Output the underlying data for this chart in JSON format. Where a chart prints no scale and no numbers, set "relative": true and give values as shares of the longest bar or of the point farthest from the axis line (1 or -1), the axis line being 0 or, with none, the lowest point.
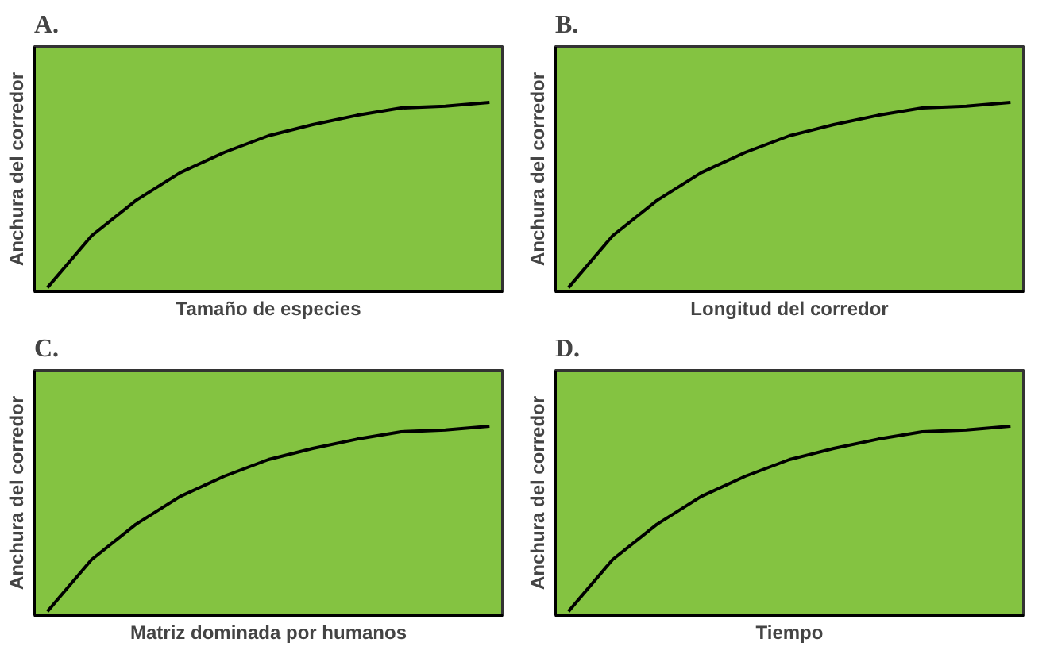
{
  "chart_data": [
    {
      "type": "line",
      "title": "A.",
      "xlabel": "Tamaño de especies",
      "ylabel": "Anchura del corredor",
      "relative": true,
      "categories": [
        null,
        null,
        null,
        null,
        null,
        null,
        null,
        null,
        null,
        null,
        null
      ],
      "series": [
        {
          "color": "#000000",
          "values": [
            0,
            0.28,
            0.47,
            0.62,
            0.73,
            0.82,
            0.88,
            0.93,
            0.97,
            0.98,
            1
          ]
        }
      ],
      "marker": "none",
      "line_style": "solid"
    },
    {
      "type": "line",
      "title": "B.",
      "xlabel": "Longitud del corredor",
      "ylabel": "Anchura del corredor",
      "relative": true,
      "categories": [
        null,
        null,
        null,
        null,
        null,
        null,
        null,
        null,
        null,
        null,
        null
      ],
      "series": [
        {
          "color": "#000000",
          "values": [
            0,
            0.28,
            0.47,
            0.62,
            0.73,
            0.82,
            0.88,
            0.93,
            0.97,
            0.98,
            1
          ]
        }
      ],
      "marker": "none",
      "line_style": "solid"
    },
    {
      "type": "line",
      "title": "C.",
      "xlabel": "Matriz dominada por humanos",
      "ylabel": "Anchura del corredor",
      "relative": true,
      "categories": [
        null,
        null,
        null,
        null,
        null,
        null,
        null,
        null,
        null,
        null,
        null
      ],
      "series": [
        {
          "color": "#000000",
          "values": [
            0,
            0.28,
            0.47,
            0.62,
            0.73,
            0.82,
            0.88,
            0.93,
            0.97,
            0.98,
            1
          ]
        }
      ],
      "marker": "none",
      "line_style": "solid"
    },
    {
      "type": "line",
      "title": "D.",
      "xlabel": "Tiempo",
      "ylabel": "Anchura del corredor",
      "relative": true,
      "categories": [
        null,
        null,
        null,
        null,
        null,
        null,
        null,
        null,
        null,
        null,
        null
      ],
      "series": [
        {
          "color": "#000000",
          "values": [
            0,
            0.28,
            0.47,
            0.62,
            0.73,
            0.82,
            0.88,
            0.93,
            0.97,
            0.98,
            1
          ]
        }
      ],
      "marker": "none",
      "line_style": "solid"
    }
  ]
}
